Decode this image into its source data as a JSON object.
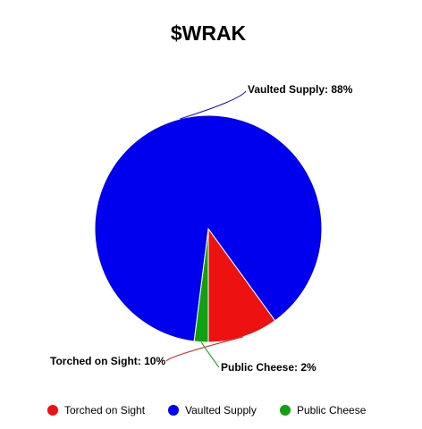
{
  "chart_data": {
    "type": "pie",
    "title": "$WRAK",
    "slices": [
      {
        "label": "Torched on Sight",
        "value": 10,
        "callout": "Torched on Sight: 10%",
        "color": "#ee1111"
      },
      {
        "label": "Vaulted Supply",
        "value": 88,
        "callout": "Vaulted Supply: 88%",
        "color": "#0000ee"
      },
      {
        "label": "Public Cheese",
        "value": 2,
        "callout": "Public Cheese: 2%",
        "color": "#11a011"
      }
    ],
    "legend_position": "bottom"
  }
}
